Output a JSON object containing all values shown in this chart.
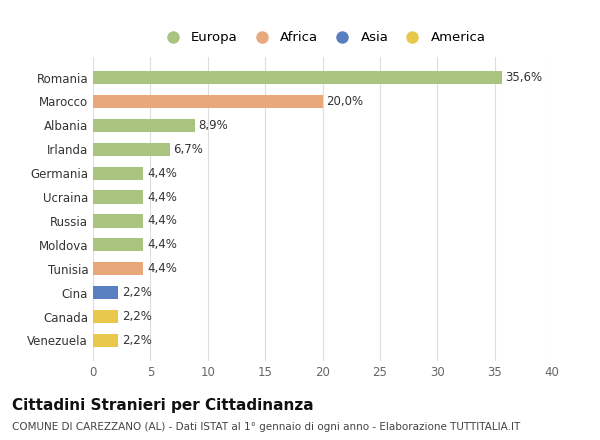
{
  "countries": [
    "Romania",
    "Marocco",
    "Albania",
    "Irlanda",
    "Germania",
    "Ucraina",
    "Russia",
    "Moldova",
    "Tunisia",
    "Cina",
    "Canada",
    "Venezuela"
  ],
  "values": [
    35.6,
    20.0,
    8.9,
    6.7,
    4.4,
    4.4,
    4.4,
    4.4,
    4.4,
    2.2,
    2.2,
    2.2
  ],
  "labels": [
    "35,6%",
    "20,0%",
    "8,9%",
    "6,7%",
    "4,4%",
    "4,4%",
    "4,4%",
    "4,4%",
    "4,4%",
    "2,2%",
    "2,2%",
    "2,2%"
  ],
  "colors": [
    "#a8c47e",
    "#e8a87c",
    "#a8c47e",
    "#a8c47e",
    "#a8c47e",
    "#a8c47e",
    "#a8c47e",
    "#a8c47e",
    "#e8a87c",
    "#5a7fc0",
    "#e8c84a",
    "#e8c84a"
  ],
  "legend_labels": [
    "Europa",
    "Africa",
    "Asia",
    "America"
  ],
  "legend_colors": [
    "#a8c47e",
    "#e8a87c",
    "#5a7fc0",
    "#e8c84a"
  ],
  "title": "Cittadini Stranieri per Cittadinanza",
  "subtitle": "COMUNE DI CAREZZANO (AL) - Dati ISTAT al 1° gennaio di ogni anno - Elaborazione TUTTITALIA.IT",
  "xlim": [
    0,
    40
  ],
  "xticks": [
    0,
    5,
    10,
    15,
    20,
    25,
    30,
    35,
    40
  ],
  "background_color": "#ffffff",
  "plot_bg_color": "#ffffff",
  "grid_color": "#dddddd",
  "bar_height": 0.55,
  "title_fontsize": 11,
  "subtitle_fontsize": 7.5,
  "label_fontsize": 8.5,
  "tick_fontsize": 8.5,
  "legend_fontsize": 9.5
}
